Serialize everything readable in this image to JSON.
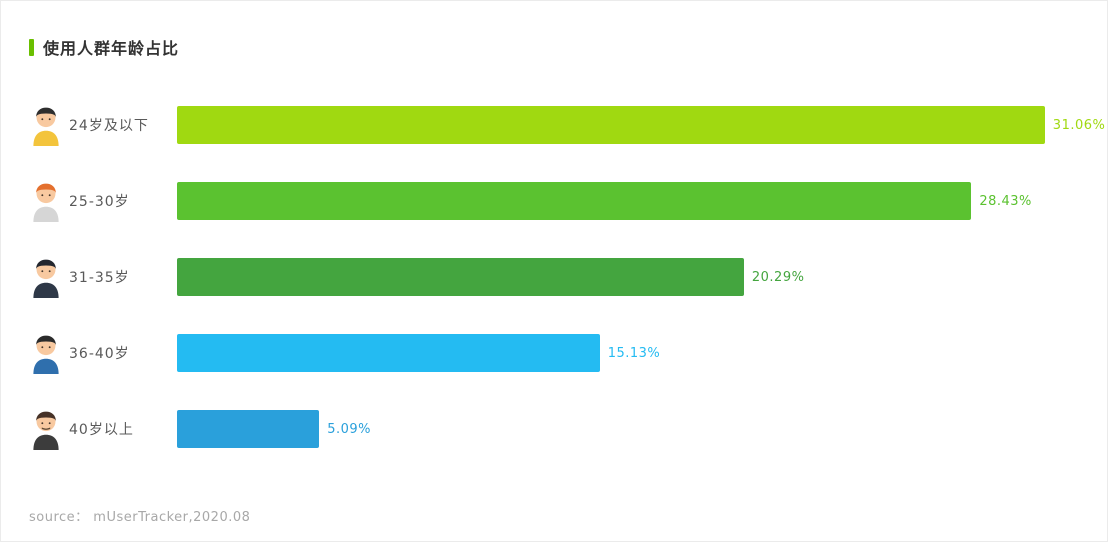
{
  "theme": {
    "accent_color": "#6abf00",
    "background": "#ffffff",
    "border_color": "#ebebeb"
  },
  "chart_data": {
    "type": "bar",
    "orientation": "horizontal",
    "title": "使用人群年龄占比",
    "categories": [
      "24岁及以下",
      "25-30岁",
      "31-35岁",
      "36-40岁",
      "40岁以上"
    ],
    "values": [
      31.06,
      28.43,
      20.29,
      15.13,
      5.09
    ],
    "value_labels": [
      "31.06%",
      "28.43%",
      "20.29%",
      "15.13%",
      "5.09%"
    ],
    "bar_colors": [
      "#a0d911",
      "#5bc230",
      "#44a53f",
      "#24bbf2",
      "#2aa0db"
    ],
    "xlim": [
      0,
      33
    ],
    "grid": false,
    "legend": false,
    "source": "source： mUserTracker,2020.08"
  },
  "avatars": [
    {
      "name": "yellow-shirt-avatar",
      "hair": "#2e2e2e",
      "clothes": "#f3c43c"
    },
    {
      "name": "orange-hair-avatar",
      "hair": "#e4702e",
      "clothes": "#d6d6d6"
    },
    {
      "name": "black-suit-avatar",
      "hair": "#23262e",
      "clothes": "#2e3847"
    },
    {
      "name": "blue-shirt-avatar",
      "hair": "#2b2b2b",
      "clothes": "#2f6fad"
    },
    {
      "name": "mustache-avatar",
      "hair": "#463227",
      "clothes": "#3c3c3c"
    }
  ]
}
